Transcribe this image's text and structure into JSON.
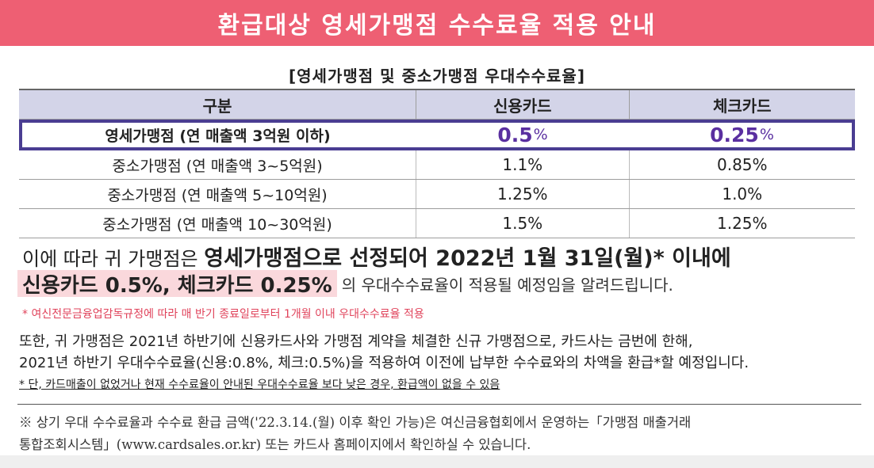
{
  "banner": {
    "title": "환급대상 영세가맹점 수수료율 적용 안내"
  },
  "table": {
    "title": "[영세가맹점 및 중소가맹점 우대수수료율]",
    "headers": [
      "구분",
      "신용카드",
      "체크카드"
    ],
    "highlight_row": {
      "label": "영세가맹점 (연 매출액 3억원 이하)",
      "credit_value": "0.5",
      "credit_unit": "%",
      "check_value": "0.25",
      "check_unit": "%"
    },
    "rows": [
      {
        "label": "중소가맹점 (연 매출액 3~5억원)",
        "credit": "1.1%",
        "check": "0.85%"
      },
      {
        "label": "중소가맹점 (연 매출액 5~10억원)",
        "credit": "1.25%",
        "check": "1.0%"
      },
      {
        "label": "중소가맹점 (연 매출액 10~30억원)",
        "credit": "1.5%",
        "check": "1.25%"
      }
    ]
  },
  "notice": {
    "line1_prefix": "이에 따라 귀 가맹점은 ",
    "line1_bold": "영세가맹점으로 선정되어 2022년 1월 31일(월)* 이내에",
    "line2_highlight": "신용카드 0.5%, 체크카드 0.25%",
    "line2_rest": "의 우대수수료율이 적용될 예정임을 알려드립니다."
  },
  "red_footnote": "* 여신전문금융업감독규정에 따라 매 반기 종료일로부터 1개월 이내 우대수수료율 적용",
  "paragraph": {
    "line1": "또한, 귀 가맹점은 2021년 하반기에 신용카드사와 가맹점 계약을 체결한 신규 가맹점으로, 카드사는 금번에 한해,",
    "line2": "2021년 하반기 우대수수료율(신용:0.8%, 체크:0.5%)을 적용하여 이전에 납부한 수수료와의 차액을 환급*할 예정입니다."
  },
  "underline_footnote": "* 단, 카드매출이 없었거나 현재 수수료율이 안내된 우대수수료율 보다 낮은 경우, 환급액이 없을 수 있음",
  "bottom_note": {
    "line1": "※ 상기 우대 수수료율과 수수료 환급 금액('22.3.14.(월) 이후 확인 가능)은 여신금융협회에서 운영하는「가맹점 매출거래",
    "line2": "통합조회시스템」(www.cardsales.or.kr) 또는 카드사 홈페이지에서 확인하실 수 있습니다."
  },
  "colors": {
    "banner": "#ee5f73",
    "table_header": "#d3d4e8",
    "highlight_border": "#4a3d92",
    "highlight_value": "#5a2fa0",
    "highlight_bg": "#fad8dc",
    "red_note": "#e0435b"
  }
}
